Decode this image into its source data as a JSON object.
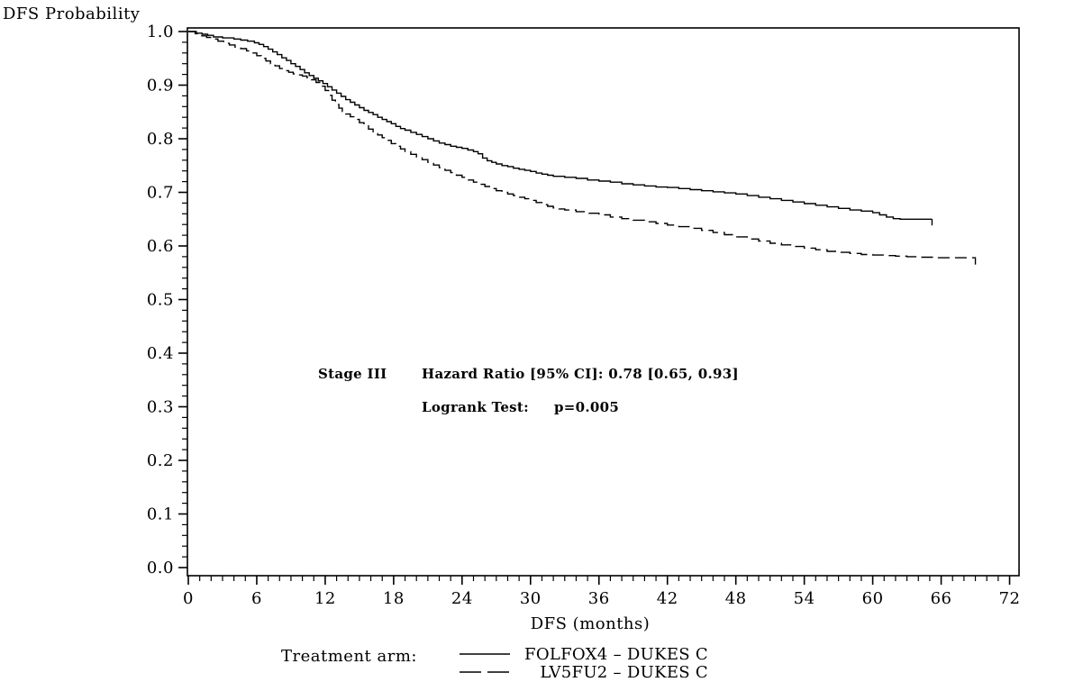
{
  "title": "DFS Probability",
  "annotation": {
    "stage_label": "Stage III",
    "hazard_line": "Hazard Ratio [95% CI]: 0.78 [0.65, 0.93]",
    "logrank_label": "Logrank Test:",
    "logrank_value": "p=0.005"
  },
  "legend": {
    "title": "Treatment arm:",
    "entries": [
      {
        "label": "FOLFOX4 – DUKES C",
        "style": "solid"
      },
      {
        "label": "LV5FU2 – DUKES C",
        "style": "dashed"
      }
    ]
  },
  "chart_data": {
    "type": "line",
    "subtype": "kaplan-meier-step",
    "title": "",
    "xlabel": "DFS (months)",
    "ylabel": "DFS Probability",
    "xlim": [
      0,
      72
    ],
    "ylim": [
      0.0,
      1.0
    ],
    "x_major_ticks": [
      0,
      6,
      12,
      18,
      24,
      30,
      36,
      42,
      48,
      54,
      60,
      66,
      72
    ],
    "x_minor_step": 1,
    "y_major_ticks": [
      1.0,
      0.9,
      0.8,
      0.7,
      0.6,
      0.5,
      0.4,
      0.3,
      0.2,
      0.1,
      0.0
    ],
    "y_minor_step": 0.02,
    "grid": false,
    "legend_position": "bottom",
    "line_color": "#000000",
    "stats": {
      "group_label": "Stage III",
      "hazard_ratio": 0.78,
      "ci_95": [
        0.65,
        0.93
      ],
      "logrank_p": 0.005
    },
    "series": [
      {
        "name": "FOLFOX4 – DUKES C",
        "dash": "solid",
        "end_tick": true,
        "points": [
          [
            0,
            1
          ],
          [
            0.7,
            0.997
          ],
          [
            1.2,
            0.995
          ],
          [
            1.7,
            0.993
          ],
          [
            2.2,
            0.99
          ],
          [
            3,
            0.988
          ],
          [
            4,
            0.986
          ],
          [
            4.6,
            0.984
          ],
          [
            5.2,
            0.982
          ],
          [
            5.8,
            0.979
          ],
          [
            6.2,
            0.976
          ],
          [
            6.6,
            0.972
          ],
          [
            7,
            0.967
          ],
          [
            7.4,
            0.962
          ],
          [
            7.8,
            0.957
          ],
          [
            8.2,
            0.951
          ],
          [
            8.6,
            0.946
          ],
          [
            9,
            0.94
          ],
          [
            9.4,
            0.935
          ],
          [
            9.8,
            0.929
          ],
          [
            10.2,
            0.923
          ],
          [
            10.6,
            0.918
          ],
          [
            11,
            0.913
          ],
          [
            11.4,
            0.908
          ],
          [
            11.8,
            0.903
          ],
          [
            12.2,
            0.897
          ],
          [
            12.6,
            0.891
          ],
          [
            13,
            0.885
          ],
          [
            13.4,
            0.879
          ],
          [
            13.8,
            0.873
          ],
          [
            14.2,
            0.868
          ],
          [
            14.6,
            0.863
          ],
          [
            15,
            0.858
          ],
          [
            15.4,
            0.853
          ],
          [
            15.8,
            0.849
          ],
          [
            16.2,
            0.845
          ],
          [
            16.6,
            0.84
          ],
          [
            17,
            0.836
          ],
          [
            17.4,
            0.832
          ],
          [
            17.8,
            0.828
          ],
          [
            18.2,
            0.823
          ],
          [
            18.6,
            0.819
          ],
          [
            19,
            0.816
          ],
          [
            19.5,
            0.812
          ],
          [
            20,
            0.808
          ],
          [
            20.5,
            0.804
          ],
          [
            21,
            0.8
          ],
          [
            21.5,
            0.796
          ],
          [
            22,
            0.792
          ],
          [
            22.5,
            0.789
          ],
          [
            23,
            0.786
          ],
          [
            23.5,
            0.784
          ],
          [
            24,
            0.782
          ],
          [
            24.5,
            0.779
          ],
          [
            25,
            0.776
          ],
          [
            25.4,
            0.772
          ],
          [
            25.8,
            0.764
          ],
          [
            26.2,
            0.759
          ],
          [
            26.6,
            0.756
          ],
          [
            27,
            0.753
          ],
          [
            27.5,
            0.75
          ],
          [
            28,
            0.748
          ],
          [
            28.5,
            0.745
          ],
          [
            29,
            0.743
          ],
          [
            29.5,
            0.741
          ],
          [
            30,
            0.739
          ],
          [
            30.5,
            0.736
          ],
          [
            31,
            0.734
          ],
          [
            31.5,
            0.732
          ],
          [
            32,
            0.73
          ],
          [
            33,
            0.728
          ],
          [
            34,
            0.726
          ],
          [
            35,
            0.723
          ],
          [
            36,
            0.721
          ],
          [
            37,
            0.719
          ],
          [
            38,
            0.716
          ],
          [
            39,
            0.714
          ],
          [
            40,
            0.712
          ],
          [
            41,
            0.71
          ],
          [
            42,
            0.709
          ],
          [
            43,
            0.707
          ],
          [
            44,
            0.705
          ],
          [
            45,
            0.703
          ],
          [
            46,
            0.701
          ],
          [
            47,
            0.699
          ],
          [
            48,
            0.697
          ],
          [
            49,
            0.694
          ],
          [
            50,
            0.691
          ],
          [
            51,
            0.688
          ],
          [
            52,
            0.685
          ],
          [
            53,
            0.682
          ],
          [
            54,
            0.679
          ],
          [
            55,
            0.676
          ],
          [
            56,
            0.673
          ],
          [
            57,
            0.67
          ],
          [
            58,
            0.667
          ],
          [
            59,
            0.665
          ],
          [
            60,
            0.662
          ],
          [
            60.6,
            0.658
          ],
          [
            61.2,
            0.654
          ],
          [
            61.8,
            0.651
          ],
          [
            62.4,
            0.65
          ],
          [
            65.2,
            0.65
          ]
        ]
      },
      {
        "name": "LV5FU2 – DUKES C",
        "dash": "dashed",
        "end_tick": true,
        "points": [
          [
            0,
            1
          ],
          [
            0.6,
            0.996
          ],
          [
            1.1,
            0.992
          ],
          [
            1.6,
            0.989
          ],
          [
            2.1,
            0.986
          ],
          [
            2.6,
            0.982
          ],
          [
            3.1,
            0.978
          ],
          [
            3.6,
            0.975
          ],
          [
            4.1,
            0.971
          ],
          [
            4.6,
            0.968
          ],
          [
            5.1,
            0.964
          ],
          [
            5.6,
            0.96
          ],
          [
            6,
            0.955
          ],
          [
            6.4,
            0.95
          ],
          [
            6.8,
            0.945
          ],
          [
            7.2,
            0.94
          ],
          [
            7.6,
            0.936
          ],
          [
            8,
            0.931
          ],
          [
            8.4,
            0.927
          ],
          [
            8.8,
            0.924
          ],
          [
            9.2,
            0.921
          ],
          [
            9.6,
            0.919
          ],
          [
            10,
            0.917
          ],
          [
            10.4,
            0.914
          ],
          [
            10.8,
            0.91
          ],
          [
            11.2,
            0.905
          ],
          [
            11.6,
            0.898
          ],
          [
            12,
            0.89
          ],
          [
            12.3,
            0.881
          ],
          [
            12.6,
            0.872
          ],
          [
            12.9,
            0.864
          ],
          [
            13.2,
            0.857
          ],
          [
            13.5,
            0.851
          ],
          [
            13.8,
            0.846
          ],
          [
            14.2,
            0.841
          ],
          [
            14.6,
            0.836
          ],
          [
            15,
            0.83
          ],
          [
            15.4,
            0.824
          ],
          [
            15.8,
            0.818
          ],
          [
            16.2,
            0.812
          ],
          [
            16.6,
            0.807
          ],
          [
            17,
            0.802
          ],
          [
            17.4,
            0.797
          ],
          [
            17.8,
            0.791
          ],
          [
            18.2,
            0.786
          ],
          [
            18.6,
            0.781
          ],
          [
            19,
            0.776
          ],
          [
            19.5,
            0.771
          ],
          [
            20,
            0.766
          ],
          [
            20.5,
            0.761
          ],
          [
            21,
            0.756
          ],
          [
            21.5,
            0.751
          ],
          [
            22,
            0.746
          ],
          [
            22.5,
            0.741
          ],
          [
            23,
            0.737
          ],
          [
            23.5,
            0.732
          ],
          [
            24,
            0.728
          ],
          [
            24.5,
            0.723
          ],
          [
            25,
            0.719
          ],
          [
            25.5,
            0.715
          ],
          [
            26,
            0.711
          ],
          [
            26.5,
            0.707
          ],
          [
            27,
            0.703
          ],
          [
            27.5,
            0.7
          ],
          [
            28,
            0.697
          ],
          [
            28.5,
            0.694
          ],
          [
            29,
            0.691
          ],
          [
            29.5,
            0.688
          ],
          [
            30,
            0.685
          ],
          [
            30.5,
            0.681
          ],
          [
            31,
            0.677
          ],
          [
            31.5,
            0.674
          ],
          [
            32,
            0.671
          ],
          [
            32.5,
            0.669
          ],
          [
            33,
            0.667
          ],
          [
            34,
            0.664
          ],
          [
            35,
            0.661
          ],
          [
            36,
            0.658
          ],
          [
            37,
            0.654
          ],
          [
            38,
            0.651
          ],
          [
            39,
            0.648
          ],
          [
            40,
            0.645
          ],
          [
            41,
            0.642
          ],
          [
            42,
            0.639
          ],
          [
            43,
            0.636
          ],
          [
            44,
            0.633
          ],
          [
            45,
            0.629
          ],
          [
            46,
            0.625
          ],
          [
            47,
            0.621
          ],
          [
            48,
            0.617
          ],
          [
            49,
            0.613
          ],
          [
            50,
            0.609
          ],
          [
            51,
            0.605
          ],
          [
            52,
            0.602
          ],
          [
            53,
            0.599
          ],
          [
            54,
            0.596
          ],
          [
            55,
            0.593
          ],
          [
            56,
            0.59
          ],
          [
            57,
            0.588
          ],
          [
            58,
            0.586
          ],
          [
            59,
            0.584
          ],
          [
            60,
            0.583
          ],
          [
            61,
            0.582
          ],
          [
            62,
            0.581
          ],
          [
            63,
            0.58
          ],
          [
            64,
            0.579
          ],
          [
            65.5,
            0.578
          ],
          [
            69,
            0.577
          ]
        ]
      }
    ]
  }
}
